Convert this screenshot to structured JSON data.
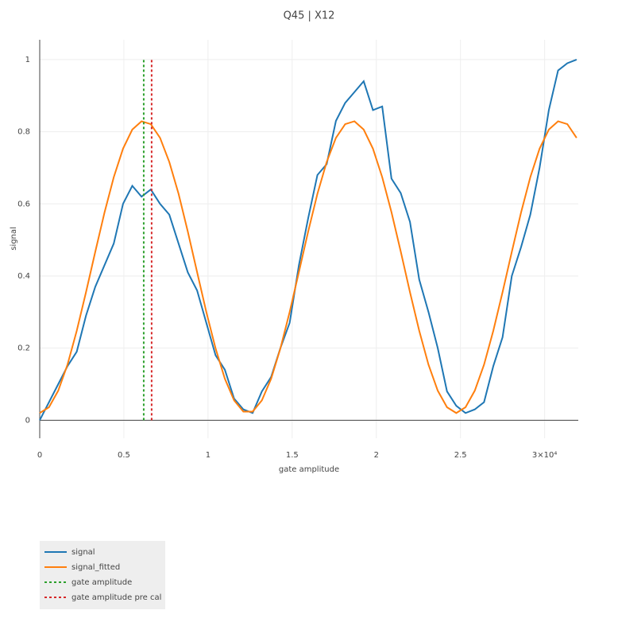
{
  "chart_data": {
    "type": "line",
    "title": "Q45 | X12",
    "x_label": "gate amplitude",
    "y_label": "signal",
    "xlim": [
      0,
      32000
    ],
    "ylim": [
      -0.05,
      1.055
    ],
    "xticks": [
      0,
      {
        "value": 5000,
        "label": "0.5"
      },
      {
        "value": 10000,
        "label": "1"
      },
      {
        "value": 15000,
        "label": "1.5"
      },
      {
        "value": 20000,
        "label": "2"
      },
      {
        "value": 25000,
        "label": "2.5"
      },
      {
        "value": 30000,
        "label": "3×10⁴"
      }
    ],
    "yticks": [
      0,
      0.2,
      0.4,
      0.6,
      0.8,
      1
    ],
    "grid": true,
    "legend": "bottom-left",
    "series": [
      {
        "name": "signal",
        "color": "#1f77b4",
        "dash": false,
        "x": [
          0,
          550,
          1100,
          1650,
          2200,
          2750,
          3300,
          3850,
          4400,
          4950,
          5500,
          6050,
          6600,
          7150,
          7700,
          8250,
          8800,
          9350,
          9900,
          10450,
          11000,
          11550,
          12100,
          12650,
          13200,
          13750,
          14300,
          14850,
          15400,
          15950,
          16500,
          17050,
          17600,
          18150,
          18700,
          19250,
          19800,
          20350,
          20900,
          21450,
          22000,
          22550,
          23100,
          23650,
          24200,
          24750,
          25300,
          25850,
          26400,
          26950,
          27500,
          28050,
          28600,
          29150,
          29700,
          30250,
          30800,
          31350,
          31900
        ],
        "values": [
          0,
          0.05,
          0.1,
          0.15,
          0.19,
          0.29,
          0.37,
          0.43,
          0.49,
          0.6,
          0.65,
          0.62,
          0.64,
          0.6,
          0.57,
          0.49,
          0.41,
          0.36,
          0.27,
          0.18,
          0.14,
          0.06,
          0.03,
          0.02,
          0.08,
          0.12,
          0.2,
          0.27,
          0.43,
          0.56,
          0.68,
          0.71,
          0.83,
          0.88,
          0.91,
          0.94,
          0.86,
          0.87,
          0.67,
          0.63,
          0.55,
          0.39,
          0.3,
          0.2,
          0.08,
          0.04,
          0.02,
          0.03,
          0.05,
          0.15,
          0.23,
          0.4,
          0.48,
          0.57,
          0.7,
          0.86,
          0.97,
          0.99,
          1.0
        ]
      },
      {
        "name": "signal_fitted",
        "color": "#ff7f0e",
        "dash": false,
        "x": [
          0,
          550,
          1100,
          1650,
          2200,
          2750,
          3300,
          3850,
          4400,
          4950,
          5500,
          6050,
          6600,
          7150,
          7700,
          8250,
          8800,
          9350,
          9900,
          10450,
          11000,
          11550,
          12100,
          12650,
          13200,
          13750,
          14300,
          14850,
          15400,
          15950,
          16500,
          17050,
          17600,
          18150,
          18700,
          19250,
          19800,
          20350,
          20900,
          21450,
          22000,
          22550,
          23100,
          23650,
          24200,
          24750,
          25300,
          25850,
          26400,
          26950,
          27500,
          28050,
          28600,
          29150,
          29700,
          30250,
          30800,
          31350,
          31900
        ],
        "values": [
          0.02,
          0.036,
          0.082,
          0.154,
          0.248,
          0.355,
          0.467,
          0.576,
          0.674,
          0.753,
          0.806,
          0.829,
          0.821,
          0.783,
          0.716,
          0.628,
          0.523,
          0.411,
          0.3,
          0.199,
          0.115,
          0.055,
          0.024,
          0.024,
          0.055,
          0.115,
          0.199,
          0.3,
          0.411,
          0.523,
          0.628,
          0.716,
          0.783,
          0.821,
          0.829,
          0.806,
          0.753,
          0.674,
          0.577,
          0.468,
          0.355,
          0.248,
          0.154,
          0.082,
          0.036,
          0.02,
          0.036,
          0.082,
          0.154,
          0.248,
          0.355,
          0.467,
          0.576,
          0.674,
          0.753,
          0.806,
          0.829,
          0.821,
          0.783
        ]
      },
      {
        "name": "gate amplitude",
        "color": "#2ca02c",
        "dash": true,
        "x": [
          6180,
          6180
        ],
        "values": [
          0,
          1
        ]
      },
      {
        "name": "gate amplitude pre cal",
        "color": "#d62728",
        "dash": true,
        "x": [
          6650,
          6650
        ],
        "values": [
          0,
          1
        ]
      }
    ]
  }
}
